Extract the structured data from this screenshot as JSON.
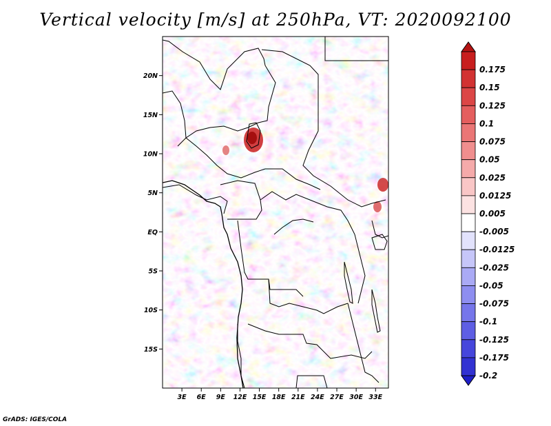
{
  "title": "Vertical velocity [m/s] at 250hPa, VT: 2020092100",
  "credit": "GrADS: IGES/COLA",
  "map": {
    "lon_range": [
      0,
      35
    ],
    "lat_range": [
      -20,
      25
    ],
    "lat_ticks": [
      {
        "value": 20,
        "label": "20N"
      },
      {
        "value": 15,
        "label": "15N"
      },
      {
        "value": 10,
        "label": "10N"
      },
      {
        "value": 5,
        "label": "5N"
      },
      {
        "value": 0,
        "label": "EQ"
      },
      {
        "value": -5,
        "label": "5S"
      },
      {
        "value": -10,
        "label": "10S"
      },
      {
        "value": -15,
        "label": "15S"
      }
    ],
    "lon_ticks": [
      {
        "value": 3,
        "label": "3E"
      },
      {
        "value": 6,
        "label": "6E"
      },
      {
        "value": 9,
        "label": "9E"
      },
      {
        "value": 12,
        "label": "12E"
      },
      {
        "value": 15,
        "label": "15E"
      },
      {
        "value": 18,
        "label": "18E"
      },
      {
        "value": 21,
        "label": "21E"
      },
      {
        "value": 24,
        "label": "24E"
      },
      {
        "value": 27,
        "label": "27E"
      },
      {
        "value": 30,
        "label": "30E"
      },
      {
        "value": 33,
        "label": "33E"
      }
    ]
  },
  "colorbar": {
    "levels": [
      {
        "label": "0.175",
        "color": "#c81e1e"
      },
      {
        "label": "0.15",
        "color": "#d23232"
      },
      {
        "label": "0.125",
        "color": "#dc4646"
      },
      {
        "label": "0.1",
        "color": "#e45e5e"
      },
      {
        "label": "0.075",
        "color": "#ea7676"
      },
      {
        "label": "0.05",
        "color": "#f08e8e"
      },
      {
        "label": "0.025",
        "color": "#f5aaaa"
      },
      {
        "label": "0.0125",
        "color": "#f9c6c6"
      },
      {
        "label": "0.005",
        "color": "#fce2e2"
      },
      {
        "label": "-0.005",
        "color": "#ffffff"
      },
      {
        "label": "-0.0125",
        "color": "#e2e2fc"
      },
      {
        "label": "-0.025",
        "color": "#c6c6f9"
      },
      {
        "label": "-0.05",
        "color": "#aaaaf5"
      },
      {
        "label": "-0.075",
        "color": "#8e8ef0"
      },
      {
        "label": "-0.1",
        "color": "#7676ea"
      },
      {
        "label": "-0.125",
        "color": "#5e5ee4"
      },
      {
        "label": "-0.175",
        "color": "#4646dc"
      },
      {
        "label": "-0.2",
        "color": "#3232d2"
      }
    ],
    "top_extend_color": "#b41414",
    "bottom_extend_color": "#1e1ec8"
  }
}
